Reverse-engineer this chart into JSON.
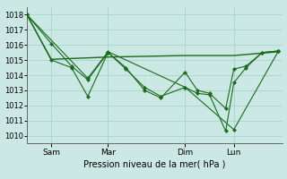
{
  "background_color": "#cce8e4",
  "grid_color": "#a8d4ce",
  "line_color": "#1a6b1a",
  "ylim": [
    1009.5,
    1018.5
  ],
  "yticks": [
    1010,
    1011,
    1012,
    1013,
    1014,
    1015,
    1016,
    1017,
    1018
  ],
  "xlabel": "Pression niveau de la mer( hPa )",
  "xtick_labels": [
    "Sam",
    "Mar",
    "Dim",
    "Lun"
  ],
  "xtick_positions": [
    30,
    100,
    195,
    255
  ],
  "line1_x": [
    0,
    30,
    55,
    75,
    100,
    122,
    145,
    165,
    195,
    210,
    225,
    245,
    255,
    270,
    290,
    310
  ],
  "line1_y": [
    1018.0,
    1016.1,
    1014.6,
    1013.7,
    1015.5,
    1014.5,
    1013.0,
    1012.5,
    1014.2,
    1013.0,
    1012.8,
    1011.8,
    1014.4,
    1014.6,
    1015.5,
    1015.6
  ],
  "line2_x": [
    0,
    30,
    55,
    75,
    100,
    122,
    145,
    165,
    195,
    210,
    225,
    245,
    255,
    270,
    290,
    310
  ],
  "line2_y": [
    1018.0,
    1015.0,
    1014.5,
    1012.6,
    1015.5,
    1014.4,
    1013.2,
    1012.6,
    1013.2,
    1012.8,
    1012.7,
    1010.3,
    1013.5,
    1014.5,
    1015.5,
    1015.6
  ],
  "line3_x": [
    0,
    30,
    100,
    195,
    255,
    310
  ],
  "line3_y": [
    1018.0,
    1015.05,
    1015.2,
    1015.3,
    1015.3,
    1015.55
  ],
  "line4_x": [
    0,
    75,
    100,
    195,
    255,
    310
  ],
  "line4_y": [
    1018.0,
    1013.8,
    1015.55,
    1013.2,
    1010.4,
    1015.6
  ]
}
